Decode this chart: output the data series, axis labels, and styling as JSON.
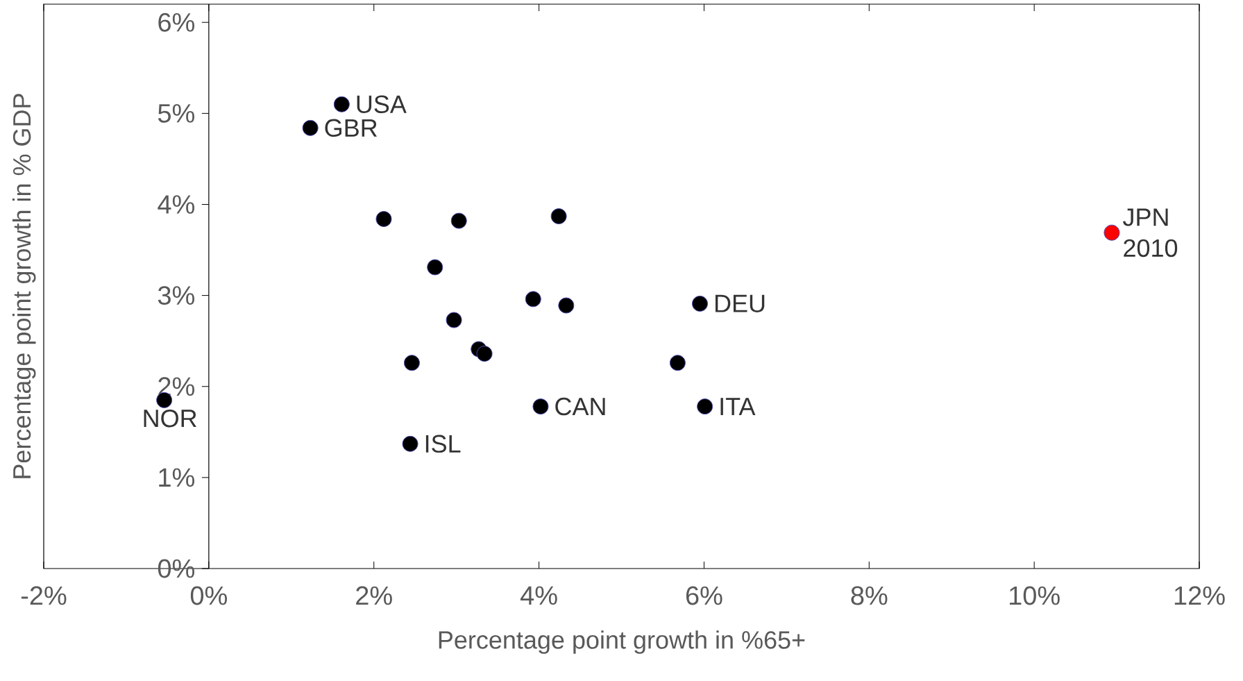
{
  "chart_data": {
    "type": "scatter",
    "xlabel": "Percentage point growth in %65+",
    "ylabel": "Percentage point growth in % GDP",
    "series": [
      {
        "color": "#000000",
        "x": [
          1.61,
          1.23,
          2.12,
          3.03,
          4.24,
          2.74,
          3.93,
          4.33,
          5.95,
          2.97,
          3.27,
          3.34,
          2.46,
          5.68,
          4.02,
          6.01,
          2.44,
          -0.54
        ],
        "values": [
          5.1,
          4.84,
          3.84,
          3.82,
          3.87,
          3.31,
          2.96,
          2.89,
          2.91,
          2.73,
          2.41,
          2.36,
          2.26,
          2.26,
          1.78,
          1.78,
          1.37,
          1.85
        ]
      },
      {
        "color": "#ff0000",
        "x": [
          10.94
        ],
        "values": [
          3.69
        ]
      }
    ],
    "marker": "circle",
    "grid": false,
    "xlim": [
      -2,
      12
    ],
    "ylim": [
      0,
      6.2
    ],
    "xticks": [
      {
        "value": -2,
        "label": "-2%"
      },
      {
        "value": 0,
        "label": "0%"
      },
      {
        "value": 2,
        "label": "2%"
      },
      {
        "value": 4,
        "label": "4%"
      },
      {
        "value": 6,
        "label": "6%"
      },
      {
        "value": 8,
        "label": "8%"
      },
      {
        "value": 10,
        "label": "10%"
      },
      {
        "value": 12,
        "label": "12%"
      }
    ],
    "yticks": [
      {
        "value": 0,
        "label": "0%"
      },
      {
        "value": 1,
        "label": "1%"
      },
      {
        "value": 2,
        "label": "2%"
      },
      {
        "value": 3,
        "label": "3%"
      },
      {
        "value": 4,
        "label": "4%"
      },
      {
        "value": 5,
        "label": "5%"
      },
      {
        "value": 6,
        "label": "6%"
      }
    ],
    "annotations": [
      {
        "text": "USA",
        "x": 1.61,
        "y": 5.1
      },
      {
        "text": "GBR",
        "x": 1.23,
        "y": 4.84
      },
      {
        "text": "DEU",
        "x": 5.95,
        "y": 2.91
      },
      {
        "text": "CAN",
        "x": 4.02,
        "y": 1.78
      },
      {
        "text": "ITA",
        "x": 6.01,
        "y": 1.78
      },
      {
        "text": "ISL",
        "x": 2.44,
        "y": 1.37
      },
      {
        "text": "NOR",
        "x": -0.54,
        "y": 1.85
      },
      {
        "text": "JPN",
        "x": 10.94,
        "y": 3.69
      },
      {
        "text": "2010",
        "x": 10.94,
        "y": 3.69
      }
    ]
  }
}
